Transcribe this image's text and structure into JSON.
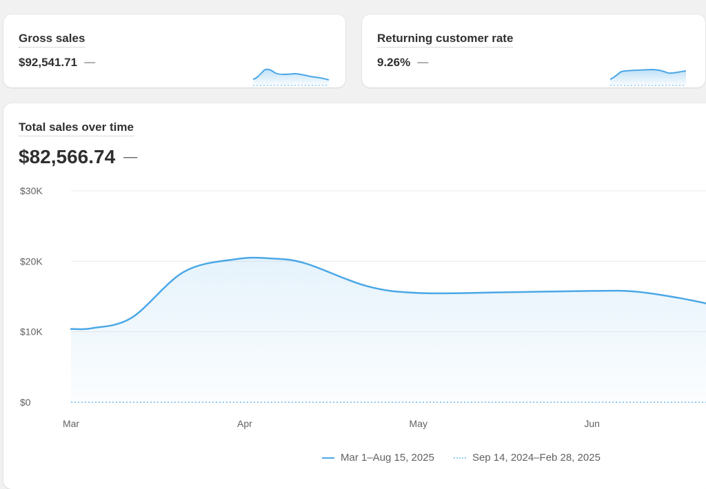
{
  "kpis": {
    "gross_sales": {
      "title": "Gross sales",
      "value": "$92,541.71",
      "change": "—"
    },
    "returning_rate": {
      "title": "Returning customer rate",
      "value": "9.26%",
      "change": "—"
    }
  },
  "main": {
    "title": "Total sales over time",
    "value": "$82,566.74",
    "change": "—",
    "legend": {
      "current": "Mar 1–Aug 15, 2025",
      "previous": "Sep 14, 2024–Feb 28, 2025"
    }
  },
  "colors": {
    "accent": "#4aa7e6",
    "previous": "#8fc9ee",
    "fill": "#e8f4fc"
  },
  "chart_data": {
    "type": "area",
    "title": "Total sales over time",
    "xlabel": "",
    "ylabel": "",
    "y_ticks": [
      "$0",
      "$10K",
      "$20K",
      "$30K"
    ],
    "y_tick_values": [
      0,
      10000,
      20000,
      30000
    ],
    "ylim": [
      0,
      30000
    ],
    "x_ticks": [
      "Mar",
      "Apr",
      "May",
      "Jun"
    ],
    "x_tick_positions": [
      0,
      1,
      2,
      3
    ],
    "xlim": [
      0,
      3.7
    ],
    "grid": true,
    "legend_position": "bottom",
    "series": [
      {
        "name": "Mar 1–Aug 15, 2025",
        "style": "solid",
        "x": [
          0,
          0.12,
          0.35,
          0.65,
          0.95,
          1.15,
          1.35,
          1.7,
          2.0,
          2.5,
          3.0,
          3.25,
          3.5,
          3.7
        ],
        "values": [
          10400,
          10500,
          12000,
          18500,
          20300,
          20400,
          19700,
          16500,
          15500,
          15600,
          15800,
          15700,
          14800,
          13800
        ]
      },
      {
        "name": "Sep 14, 2024–Feb 28, 2025",
        "style": "dotted",
        "x": [
          0,
          3.7
        ],
        "values": [
          0,
          0
        ]
      }
    ]
  }
}
